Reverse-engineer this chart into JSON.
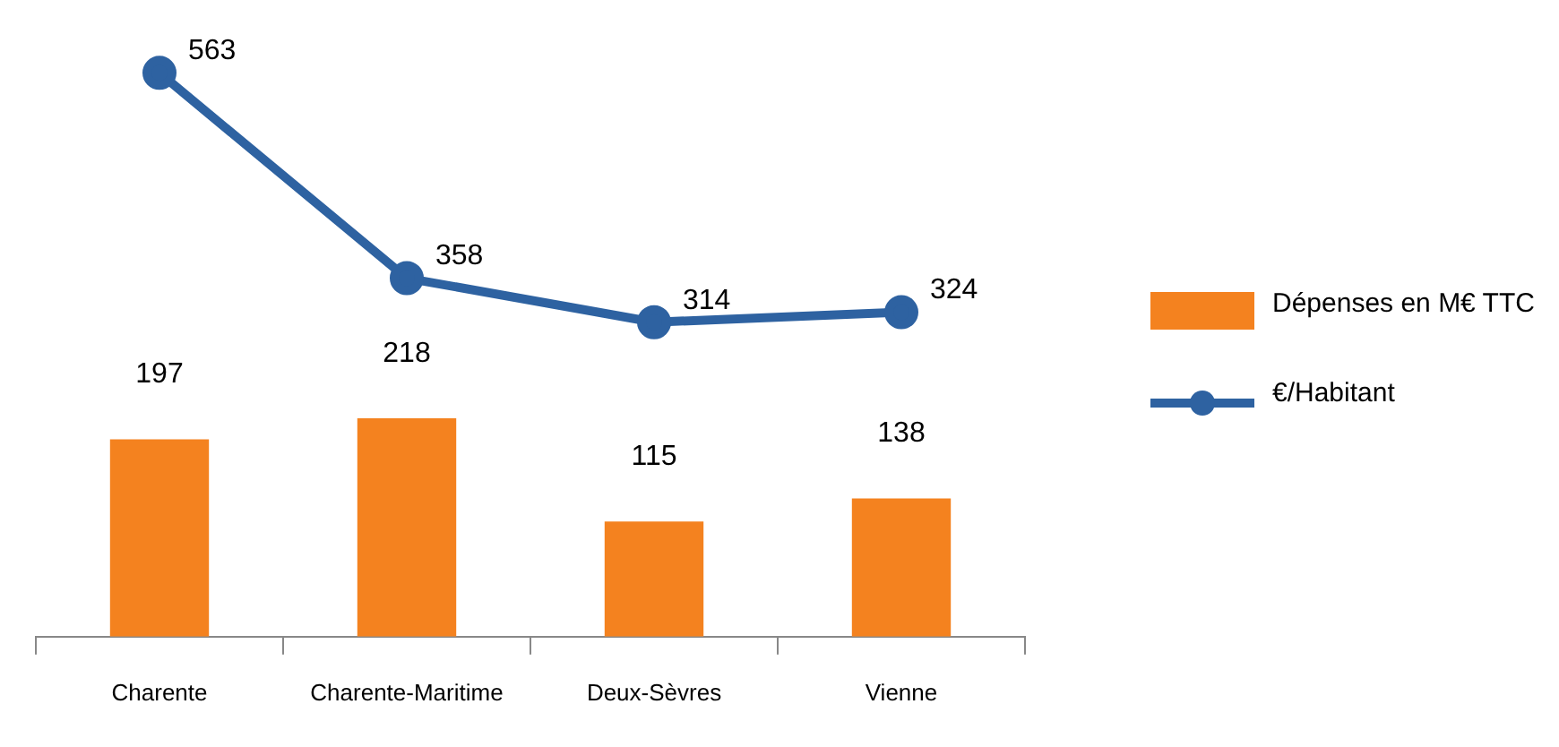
{
  "chart_data": {
    "type": "bar",
    "categories": [
      "Charente",
      "Charente-Maritime",
      "Deux-Sèvres",
      "Vienne"
    ],
    "series": [
      {
        "name": "Dépenses en M€ TTC",
        "color": "#f4821f",
        "values": [
          197,
          218,
          115,
          138
        ]
      },
      {
        "name": "€/Habitant",
        "type": "line",
        "color": "#2e62a1",
        "values": [
          563,
          358,
          314,
          324
        ]
      }
    ],
    "data_labels": true,
    "legend": "right",
    "grid": false,
    "tick_labels": "x",
    "marker": "circle",
    "line_style": "solid"
  }
}
